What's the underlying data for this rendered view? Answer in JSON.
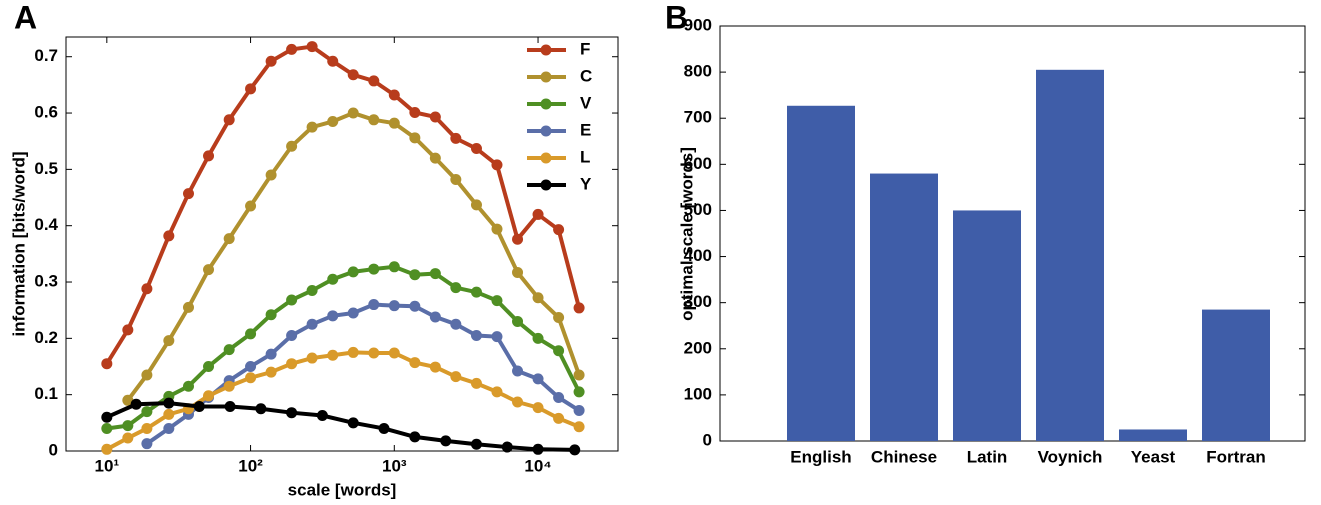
{
  "chart_data": [
    {
      "type": "line",
      "label": "A",
      "xlabel": "scale [words]",
      "ylabel": "information [bits/word]",
      "xscale": "log",
      "xlim": [
        5.2,
        36000
      ],
      "ylim": [
        0,
        0.735
      ],
      "xticks": [
        {
          "value": 10,
          "label": "10¹"
        },
        {
          "value": 100,
          "label": "10²"
        },
        {
          "value": 1000,
          "label": "10³"
        },
        {
          "value": 10000,
          "label": "10⁴"
        }
      ],
      "yticks": [
        0,
        0.1,
        0.2,
        0.3,
        0.4,
        0.5,
        0.6,
        0.7
      ],
      "grid": false,
      "legend": "upper right",
      "x": [
        10,
        14,
        19,
        27,
        37,
        51,
        71,
        100,
        139,
        193,
        268,
        373,
        518,
        720,
        1000,
        1390,
        1930,
        2680,
        3730,
        5180,
        7200,
        10000,
        13900,
        19300
      ],
      "series": [
        {
          "name": "F",
          "color": "#b83c1c",
          "values": [
            0.155,
            0.215,
            0.288,
            0.382,
            0.457,
            0.524,
            0.588,
            0.643,
            0.692,
            0.713,
            0.718,
            0.692,
            0.668,
            0.657,
            0.632,
            0.601,
            0.593,
            0.555,
            0.537,
            0.508,
            0.376,
            0.42,
            0.393,
            0.254
          ]
        },
        {
          "name": "C",
          "color": "#b0912e",
          "values": [
            null,
            0.09,
            0.135,
            0.196,
            0.255,
            0.322,
            0.377,
            0.435,
            0.49,
            0.541,
            0.575,
            0.585,
            0.6,
            0.588,
            0.582,
            0.556,
            0.52,
            0.482,
            0.437,
            0.394,
            0.317,
            0.272,
            0.237,
            0.135
          ]
        },
        {
          "name": "V",
          "color": "#4f8f23",
          "values": [
            0.04,
            0.045,
            0.07,
            0.097,
            0.115,
            0.15,
            0.18,
            0.208,
            0.242,
            0.268,
            0.285,
            0.305,
            0.318,
            0.323,
            0.327,
            0.313,
            0.315,
            0.29,
            0.282,
            0.267,
            0.23,
            0.2,
            0.178,
            0.105
          ]
        },
        {
          "name": "E",
          "color": "#5a6ea8",
          "values": [
            null,
            null,
            0.013,
            0.04,
            0.065,
            0.095,
            0.125,
            0.15,
            0.172,
            0.205,
            0.225,
            0.24,
            0.245,
            0.26,
            0.258,
            0.257,
            0.238,
            0.225,
            0.205,
            0.203,
            0.142,
            0.128,
            0.095,
            0.072
          ]
        },
        {
          "name": "L",
          "color": "#d99a2a",
          "values": [
            0.003,
            0.023,
            0.04,
            0.065,
            0.075,
            0.098,
            0.115,
            0.13,
            0.14,
            0.155,
            0.165,
            0.17,
            0.175,
            0.174,
            0.174,
            0.157,
            0.149,
            0.132,
            0.12,
            0.105,
            0.087,
            0.077,
            0.058,
            0.043
          ]
        },
        {
          "name": "Y",
          "color": "#000000",
          "x": [
            10,
            16,
            27,
            44,
            72,
            118,
            193,
            316,
            518,
            848,
            1390,
            2280,
            3730,
            6110,
            10000,
            18000
          ],
          "values": [
            0.06,
            0.083,
            0.085,
            0.079,
            0.079,
            0.075,
            0.068,
            0.063,
            0.05,
            0.04,
            0.025,
            0.018,
            0.012,
            0.007,
            0.003,
            0.002
          ]
        }
      ]
    },
    {
      "type": "bar",
      "label": "B",
      "ylabel": "optimal scale [words]",
      "categories": [
        "English",
        "Chinese",
        "Latin",
        "Voynich",
        "Yeast",
        "Fortran"
      ],
      "values": [
        727,
        580,
        500,
        805,
        25,
        285
      ],
      "color": "#3f5da8",
      "ylim": [
        0,
        900
      ],
      "yticks": [
        0,
        100,
        200,
        300,
        400,
        500,
        600,
        700,
        800,
        900
      ],
      "grid": false
    }
  ]
}
